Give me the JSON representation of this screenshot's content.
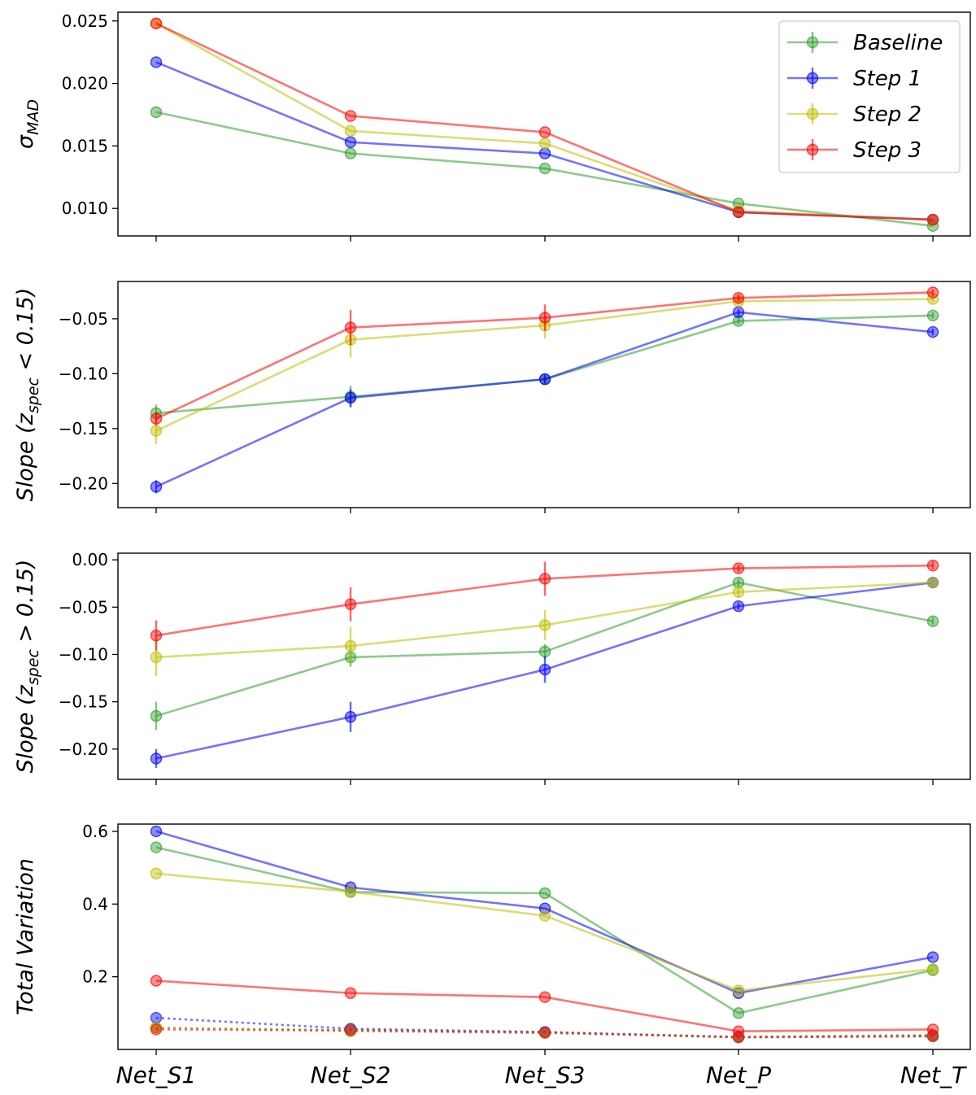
{
  "chart_data": [
    {
      "type": "line",
      "ylabel": "σ_MAD",
      "categories": [
        "Net_S1",
        "Net_S2",
        "Net_S3",
        "Net_P",
        "Net_T"
      ],
      "ylim": [
        0.0078,
        0.0257
      ],
      "yticks": [
        "0.010",
        "0.015",
        "0.020",
        "0.025"
      ],
      "legend": {
        "position": "top-right"
      },
      "series": [
        {
          "name": "Baseline",
          "color": "#2ca02c",
          "values": [
            0.0177,
            0.0144,
            0.0132,
            0.0104,
            0.0086
          ],
          "errors": [
            0,
            0,
            0,
            0,
            0
          ]
        },
        {
          "name": "Step 1",
          "color": "#0000ff",
          "values": [
            0.0217,
            0.0153,
            0.0144,
            0.0097,
            0.0091
          ],
          "errors": [
            0,
            0,
            0,
            0,
            0
          ]
        },
        {
          "name": "Step 2",
          "color": "#bfbf00",
          "values": [
            0.0248,
            0.0162,
            0.0152,
            0.0098,
            0.0091
          ],
          "errors": [
            0,
            0,
            0,
            0,
            0
          ]
        },
        {
          "name": "Step 3",
          "color": "#ff0000",
          "values": [
            0.0248,
            0.0174,
            0.0161,
            0.0097,
            0.0091
          ],
          "errors": [
            0,
            0,
            0,
            0,
            0
          ]
        }
      ]
    },
    {
      "type": "line",
      "ylabel": "Slope (z_spec < 0.15)",
      "categories": [
        "Net_S1",
        "Net_S2",
        "Net_S3",
        "Net_P",
        "Net_T"
      ],
      "ylim": [
        -0.222,
        -0.016
      ],
      "yticks": [
        "−0.20",
        "−0.15",
        "−0.10",
        "−0.05"
      ],
      "series": [
        {
          "name": "Baseline",
          "color": "#2ca02c",
          "values": [
            -0.136,
            -0.121,
            -0.105,
            -0.052,
            -0.047
          ],
          "errors": [
            0.008,
            0.01,
            0.004,
            0.003,
            0.003
          ]
        },
        {
          "name": "Step 1",
          "color": "#0000ff",
          "values": [
            -0.203,
            -0.122,
            -0.105,
            -0.044,
            -0.062
          ],
          "errors": [
            0.006,
            0.008,
            0.004,
            0.003,
            0.003
          ]
        },
        {
          "name": "Step 2",
          "color": "#bfbf00",
          "values": [
            -0.152,
            -0.069,
            -0.056,
            -0.034,
            -0.032
          ],
          "errors": [
            0.012,
            0.016,
            0.012,
            0.003,
            0.003
          ]
        },
        {
          "name": "Step 3",
          "color": "#ff0000",
          "values": [
            -0.141,
            -0.058,
            -0.049,
            -0.031,
            -0.026
          ],
          "errors": [
            0.006,
            0.016,
            0.012,
            0.003,
            0.003
          ]
        }
      ]
    },
    {
      "type": "line",
      "ylabel": "Slope (z_spec > 0.15)",
      "categories": [
        "Net_S1",
        "Net_S2",
        "Net_S3",
        "Net_P",
        "Net_T"
      ],
      "ylim": [
        -0.232,
        0.007
      ],
      "yticks": [
        "−0.20",
        "−0.15",
        "−0.10",
        "−0.05",
        "0.00"
      ],
      "series": [
        {
          "name": "Baseline",
          "color": "#2ca02c",
          "values": [
            -0.165,
            -0.103,
            -0.097,
            -0.024,
            -0.065
          ],
          "errors": [
            0.015,
            0.01,
            0.008,
            0.004,
            0.004
          ]
        },
        {
          "name": "Step 1",
          "color": "#0000ff",
          "values": [
            -0.21,
            -0.166,
            -0.116,
            -0.049,
            -0.024
          ],
          "errors": [
            0.01,
            0.016,
            0.014,
            0.004,
            0.004
          ]
        },
        {
          "name": "Step 2",
          "color": "#bfbf00",
          "values": [
            -0.103,
            -0.091,
            -0.069,
            -0.034,
            -0.024
          ],
          "errors": [
            0.02,
            0.02,
            0.016,
            0.006,
            0.004
          ]
        },
        {
          "name": "Step 3",
          "color": "#ff0000",
          "values": [
            -0.08,
            -0.047,
            -0.02,
            -0.009,
            -0.006
          ],
          "errors": [
            0.016,
            0.018,
            0.018,
            0.004,
            0.004
          ]
        }
      ]
    },
    {
      "type": "line",
      "ylabel": "Total Variation",
      "categories": [
        "Net_S1",
        "Net_S2",
        "Net_S3",
        "Net_P",
        "Net_T"
      ],
      "ylim": [
        0.0,
        0.62
      ],
      "yticks": [
        "0.2",
        "0.4",
        "0.6"
      ],
      "series": [
        {
          "name": "Baseline",
          "color": "#2ca02c",
          "values": [
            0.556,
            0.433,
            0.43,
            0.1,
            0.218
          ],
          "dotted": [
            0.06,
            0.053,
            0.047,
            0.035,
            0.04
          ]
        },
        {
          "name": "Step 1",
          "color": "#0000ff",
          "values": [
            0.6,
            0.446,
            0.388,
            0.155,
            0.254
          ],
          "dotted": [
            0.087,
            0.057,
            0.048,
            0.033,
            0.037
          ]
        },
        {
          "name": "Step 2",
          "color": "#bfbf00",
          "values": [
            0.484,
            0.434,
            0.368,
            0.162,
            0.221
          ],
          "dotted": [
            0.06,
            0.05,
            0.045,
            0.033,
            0.036
          ]
        },
        {
          "name": "Step 3",
          "color": "#ff0000",
          "values": [
            0.189,
            0.155,
            0.144,
            0.05,
            0.055
          ],
          "dotted": [
            0.055,
            0.052,
            0.046,
            0.034,
            0.036
          ]
        }
      ]
    }
  ]
}
